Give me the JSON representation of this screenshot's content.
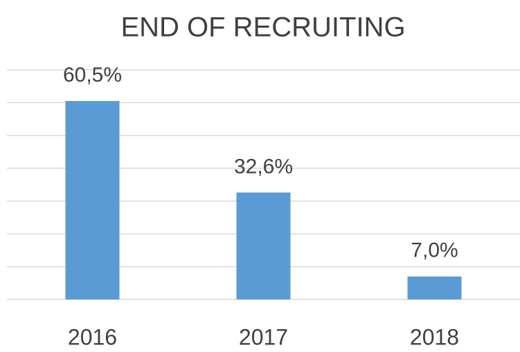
{
  "chart_data": {
    "type": "bar",
    "title": "END OF RECRUITING",
    "categories": [
      "2016",
      "2017",
      "2018"
    ],
    "values": [
      60.5,
      32.6,
      7.0
    ],
    "value_labels": [
      "60,5%",
      "32,6%",
      "7,0%"
    ],
    "color": "#5b9bd5",
    "ylim": [
      0,
      70
    ],
    "yticks": [
      0,
      10,
      20,
      30,
      40,
      50,
      60,
      70
    ],
    "grid": true
  }
}
